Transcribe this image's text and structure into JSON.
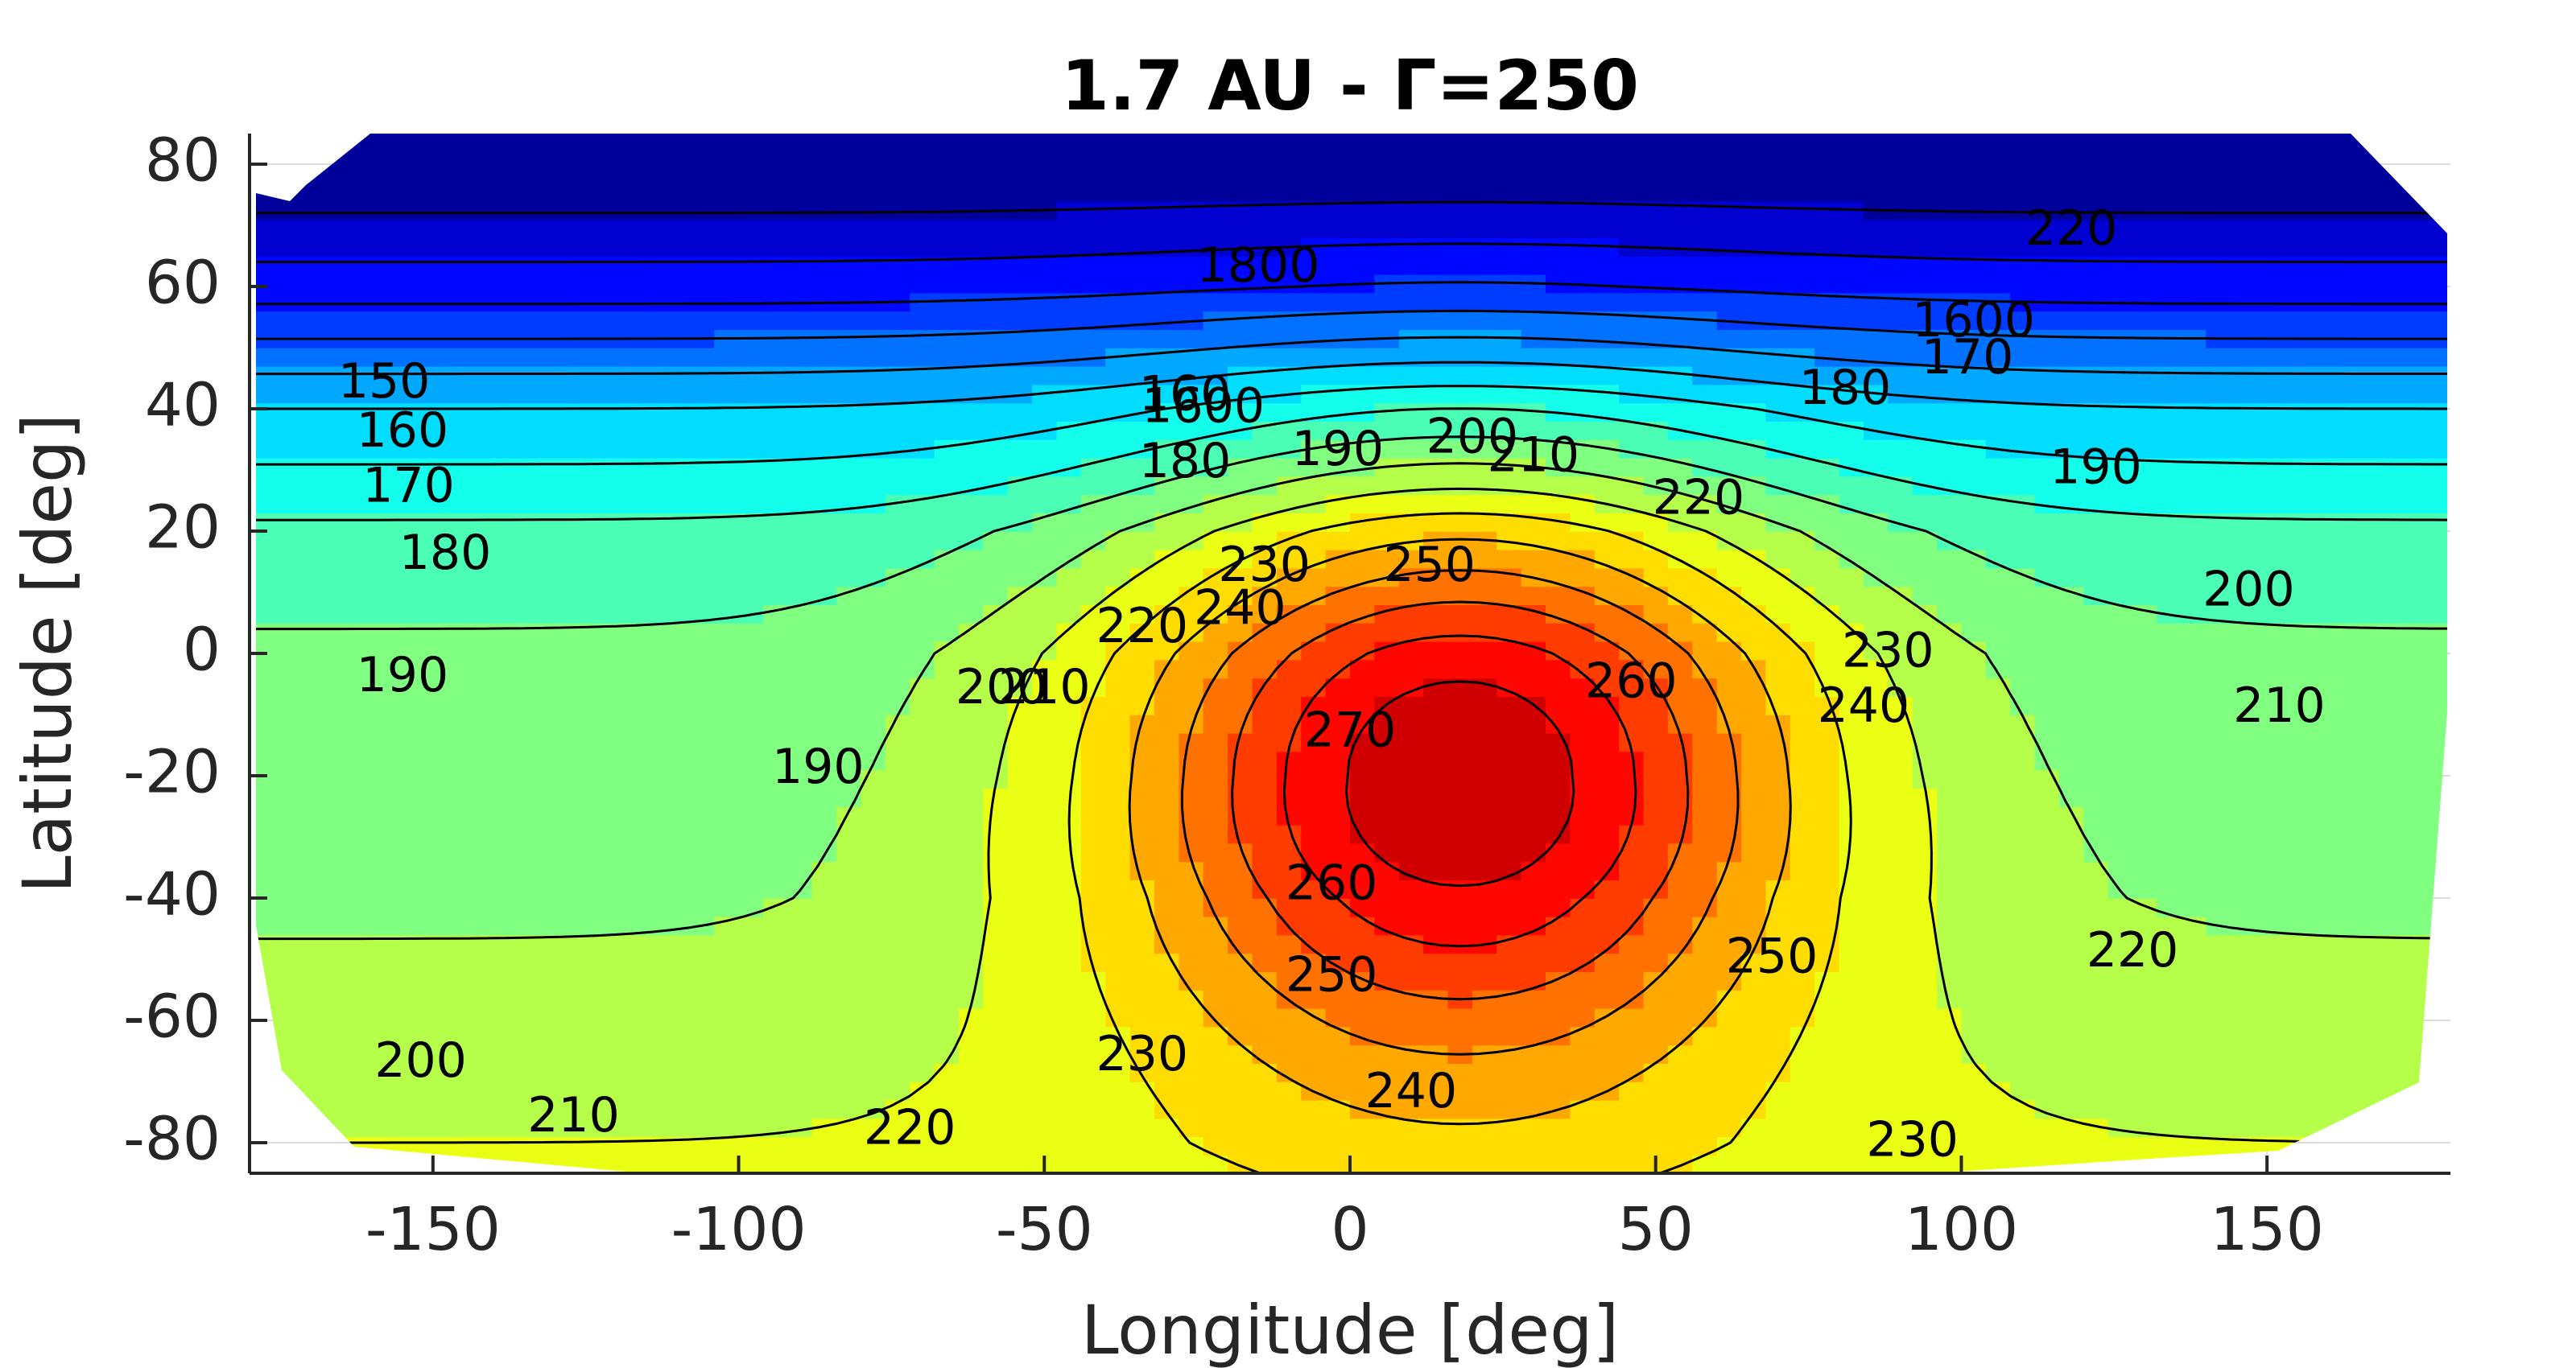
{
  "chart_data": {
    "type": "heatmap",
    "subtype": "filled-contour map",
    "title": "1.7 AU - Γ=250",
    "xlabel": "Longitude [deg]",
    "ylabel": "Latitude [deg]",
    "xlim": [
      -180,
      180
    ],
    "ylim": [
      -85,
      85
    ],
    "xticks": [
      -150,
      -100,
      -50,
      0,
      50,
      100,
      150
    ],
    "yticks": [
      80,
      60,
      40,
      20,
      0,
      -20,
      -40,
      -60,
      -80
    ],
    "xtick_labels": [
      "-150",
      "-100",
      "-50",
      "0",
      "50",
      "100",
      "150"
    ],
    "ytick_labels": [
      "80",
      "60",
      "40",
      "20",
      "0",
      "-20",
      "-40",
      "-60",
      "-80"
    ],
    "grid": true,
    "colormap": "jet",
    "color_range": [
      100,
      290
    ],
    "contour_interval": 10,
    "hotspot": {
      "lon": 18,
      "lat": -20,
      "value": 278
    },
    "field_summary": [
      {
        "lat": 80,
        "value": 100
      },
      {
        "lat": 60,
        "value": 125
      },
      {
        "lat": 40,
        "value": 160
      },
      {
        "lat": 20,
        "value": 182
      },
      {
        "lat": 0,
        "value": 192
      },
      {
        "lat": -40,
        "value": 198
      },
      {
        "lat": -80,
        "value": 210
      }
    ],
    "contour_labels": [
      {
        "text": "190",
        "lon": -155,
        "lat": -4
      },
      {
        "text": "180",
        "lon": -148,
        "lat": 16
      },
      {
        "text": "170",
        "lon": -154,
        "lat": 27
      },
      {
        "text": "160",
        "lon": -155,
        "lat": 36
      },
      {
        "text": "150",
        "lon": -158,
        "lat": 44
      },
      {
        "text": "190",
        "lon": -87,
        "lat": -19
      },
      {
        "text": "200",
        "lon": -152,
        "lat": -67
      },
      {
        "text": "210",
        "lon": -127,
        "lat": -76
      },
      {
        "text": "220",
        "lon": -72,
        "lat": -78
      },
      {
        "text": "200",
        "lon": -57,
        "lat": -6
      },
      {
        "text": "210",
        "lon": -50,
        "lat": -6
      },
      {
        "text": "220",
        "lon": -34,
        "lat": 4
      },
      {
        "text": "230",
        "lon": -14,
        "lat": 14
      },
      {
        "text": "240",
        "lon": -18,
        "lat": 7
      },
      {
        "text": "180",
        "lon": -27,
        "lat": 31
      },
      {
        "text": "160",
        "lon": -27,
        "lat": 42
      },
      {
        "text": "190",
        "lon": -2,
        "lat": 33
      },
      {
        "text": "200",
        "lon": 20,
        "lat": 35
      },
      {
        "text": "210",
        "lon": 30,
        "lat": 32
      },
      {
        "text": "220",
        "lon": 57,
        "lat": 25
      },
      {
        "text": "250",
        "lon": 13,
        "lat": 14
      },
      {
        "text": "260",
        "lon": 46,
        "lat": -5
      },
      {
        "text": "270",
        "lon": 0,
        "lat": -13
      },
      {
        "text": "260",
        "lon": -3,
        "lat": -38
      },
      {
        "text": "250",
        "lon": -3,
        "lat": -53
      },
      {
        "text": "240",
        "lon": 10,
        "lat": -72
      },
      {
        "text": "230",
        "lon": -34,
        "lat": -66
      },
      {
        "text": "250",
        "lon": 69,
        "lat": -50
      },
      {
        "text": "230",
        "lon": 88,
        "lat": 0
      },
      {
        "text": "240",
        "lon": 84,
        "lat": -9
      },
      {
        "text": "180",
        "lon": 81,
        "lat": 43
      },
      {
        "text": "170",
        "lon": 101,
        "lat": 48
      },
      {
        "text": "190",
        "lon": 122,
        "lat": 30
      },
      {
        "text": "200",
        "lon": 147,
        "lat": 10
      },
      {
        "text": "210",
        "lon": 152,
        "lat": -9
      },
      {
        "text": "220",
        "lon": 128,
        "lat": -49
      },
      {
        "text": "230",
        "lon": 92,
        "lat": -80
      },
      {
        "text": "1600",
        "lon": 102,
        "lat": 54
      },
      {
        "text": "1600",
        "lon": -24,
        "lat": 40
      },
      {
        "text": "1800",
        "lon": -15,
        "lat": 63
      },
      {
        "text": "220",
        "lon": 118,
        "lat": 69
      }
    ]
  }
}
